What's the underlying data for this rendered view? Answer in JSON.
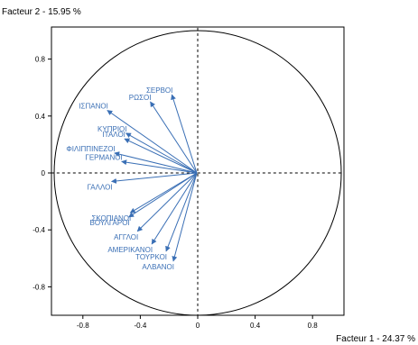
{
  "chart_data": {
    "type": "scatter",
    "subtype": "correlation-circle",
    "xlabel": "Facteur 1  -  24.37 %",
    "ylabel": "Facteur 2  -  15.95 %",
    "xlim": [
      -1.02,
      1.02
    ],
    "ylim": [
      -1.02,
      1.02
    ],
    "x_ticks": [
      {
        "value": -0.8,
        "label": "-0.8"
      },
      {
        "value": -0.4,
        "label": "-0.4"
      },
      {
        "value": 0,
        "label": "0"
      },
      {
        "value": 0.4,
        "label": "0.4"
      },
      {
        "value": 0.8,
        "label": "0.8"
      }
    ],
    "y_ticks": [
      {
        "value": 0.8,
        "label": "0.8"
      },
      {
        "value": 0.4,
        "label": "0.4"
      },
      {
        "value": 0,
        "label": "0"
      },
      {
        "value": -0.4,
        "label": "-0.4"
      },
      {
        "value": -0.8,
        "label": "-0.8"
      }
    ],
    "unit_circle": true,
    "zero_lines": "dashed",
    "arrow_color": "#3a6fb5",
    "variables": [
      {
        "label": "ΣΕΡΒΟΙ",
        "x": -0.18,
        "y": 0.55
      },
      {
        "label": "ΡΩΣΟΙ",
        "x": -0.33,
        "y": 0.5
      },
      {
        "label": "ΙΣΠΑΝΟΙ",
        "x": -0.63,
        "y": 0.44
      },
      {
        "label": "ΚΥΠΡΙΟΙ",
        "x": -0.5,
        "y": 0.28
      },
      {
        "label": "ΙΤΑΛΟΙ",
        "x": -0.51,
        "y": 0.24
      },
      {
        "label": "ΦΙΛΙΠΠΙΝΕΖΟΙ",
        "x": -0.58,
        "y": 0.14
      },
      {
        "label": "ΓΕΡΜΑΝΟΙ",
        "x": -0.53,
        "y": 0.08
      },
      {
        "label": "ΓΑΛΛΟΙ",
        "x": -0.6,
        "y": -0.06
      },
      {
        "label": "ΣΚΟΠΙΑΝΟΙ",
        "x": -0.47,
        "y": -0.28
      },
      {
        "label": "ΒΟΥΛΓΑΡΟΙ",
        "x": -0.48,
        "y": -0.31
      },
      {
        "label": "ΑΓΓΛΟΙ",
        "x": -0.42,
        "y": -0.41
      },
      {
        "label": "ΑΜΕΡΙΚΑΝΟΙ",
        "x": -0.32,
        "y": -0.5
      },
      {
        "label": "ΤΟΥΡΚΟΙ",
        "x": -0.22,
        "y": -0.55
      },
      {
        "label": "ΑΛΒΑΝΟΙ",
        "x": -0.17,
        "y": -0.62
      }
    ]
  }
}
